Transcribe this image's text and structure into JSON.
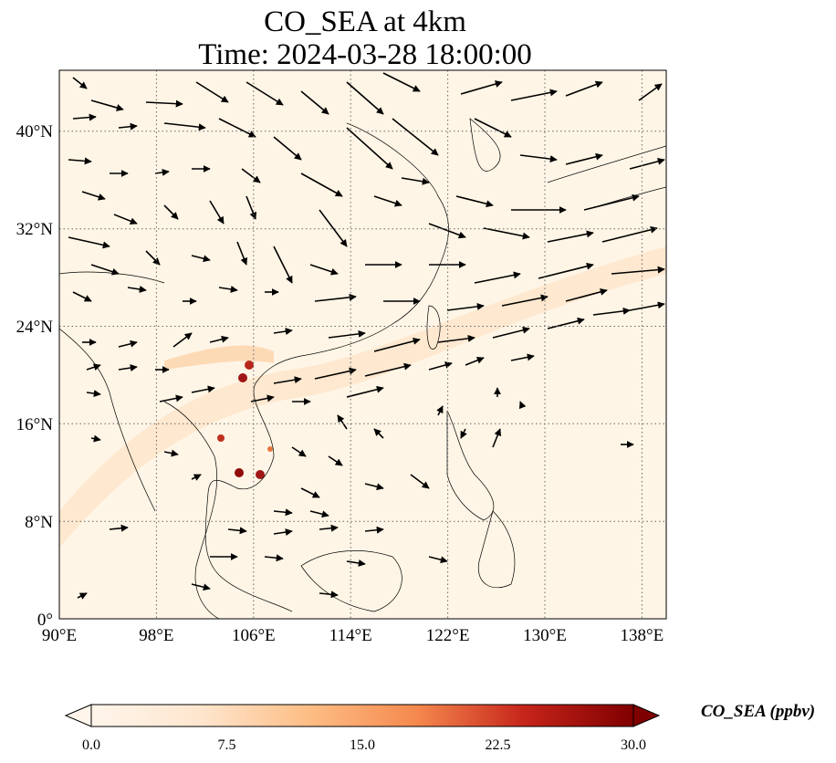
{
  "title": {
    "line1": "CO_SEA at 4km",
    "line2": "Time: 2024-03-28 18:00:00"
  },
  "map": {
    "lon_range": [
      90,
      140
    ],
    "lat_range": [
      0,
      45
    ],
    "x_ticks": [
      "90°E",
      "98°E",
      "106°E",
      "114°E",
      "122°E",
      "130°E",
      "138°E"
    ],
    "y_ticks": [
      "0°",
      "8°N",
      "16°N",
      "24°N",
      "32°N",
      "40°N"
    ],
    "gridlines": "dotted",
    "background_color": "#fff5e6",
    "coastline_color": "#000000",
    "vector_color": "#000000"
  },
  "colorbar": {
    "label": "CO_SEA (ppbv)",
    "ticks": [
      "0.0",
      "7.5",
      "15.0",
      "22.5",
      "30.0"
    ],
    "range": [
      0,
      30
    ],
    "extend": "both",
    "colormap": [
      "#fff5eb",
      "#fdd49e",
      "#fdae6b",
      "#f16913",
      "#d7301f",
      "#7f0000"
    ]
  }
}
